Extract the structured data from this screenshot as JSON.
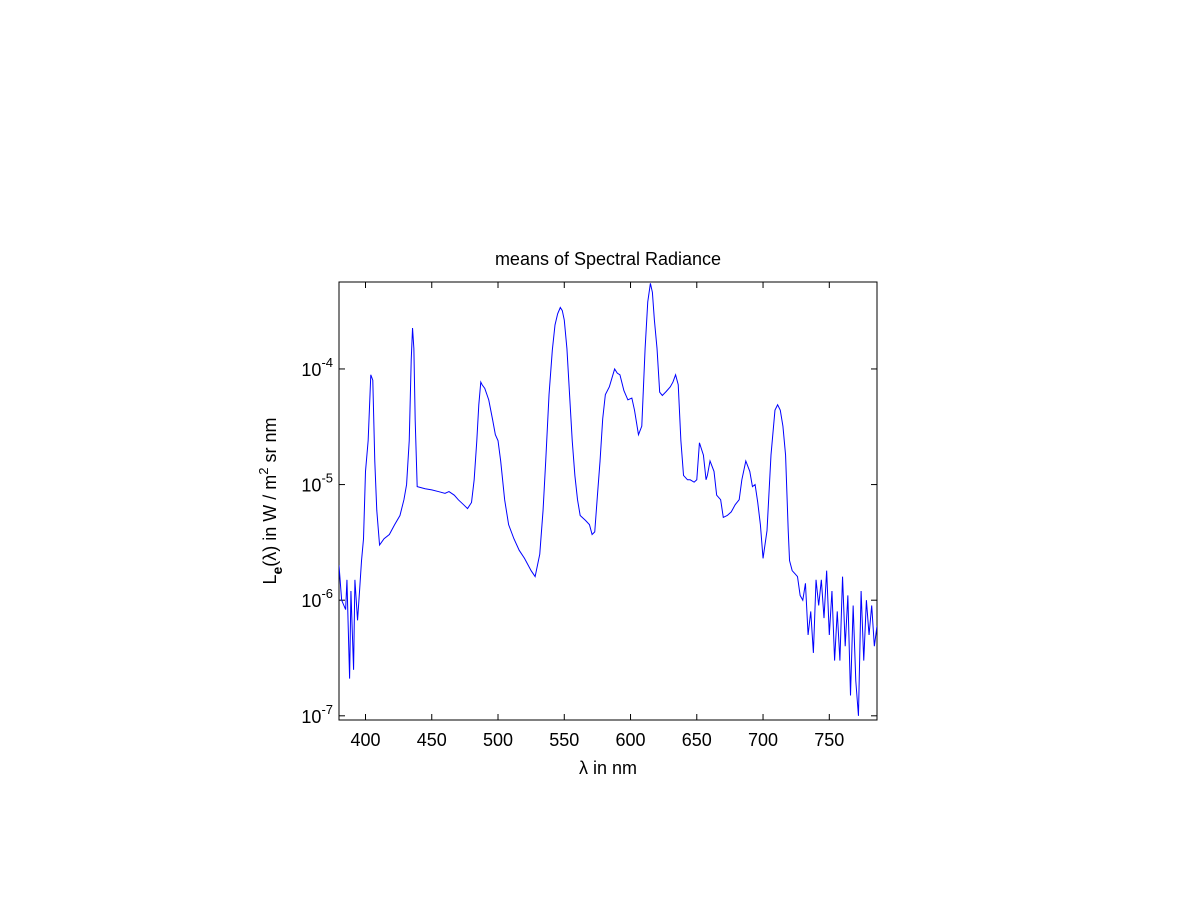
{
  "chart_data": {
    "type": "line",
    "title": "means of Spectral Radiance",
    "x_label": "λ in nm",
    "y_label": "Le(λ) in W / m2 sr nm",
    "yscale": "log",
    "color": "#0000ff",
    "x": [
      380,
      382,
      385,
      386,
      388,
      389,
      391,
      392,
      394,
      395.5,
      397,
      398.5,
      400,
      402,
      404,
      405.5,
      407,
      408.5,
      410.6,
      414,
      418,
      422,
      426,
      429,
      431,
      433,
      434.5,
      435.5,
      436.5,
      437.5,
      439,
      445,
      450,
      455,
      460,
      463,
      467,
      470,
      474,
      477,
      480,
      482,
      484,
      485.5,
      487,
      488,
      490,
      493,
      496,
      498,
      500,
      502,
      505,
      508,
      512,
      516,
      520,
      525,
      528,
      531.5,
      534,
      536,
      538.5,
      541,
      543,
      545,
      547,
      548.5,
      550,
      552,
      554,
      556,
      558,
      560,
      562,
      566,
      569,
      571,
      573,
      575,
      577,
      579,
      581,
      584,
      588,
      590,
      592,
      595,
      598,
      601,
      603,
      606,
      608.5,
      611,
      613,
      615,
      616.5,
      618,
      620,
      622,
      624,
      627,
      630,
      632,
      634,
      636,
      638,
      640,
      643,
      645,
      648,
      650,
      652,
      655,
      657,
      658,
      660,
      663,
      665,
      668,
      670,
      673,
      676,
      679,
      682,
      684,
      687,
      690,
      692,
      694,
      696,
      698,
      700,
      703,
      706,
      709,
      711,
      713,
      715,
      717,
      719,
      720,
      722,
      724,
      726,
      728,
      730,
      732,
      734,
      736,
      738,
      740,
      742,
      744,
      746,
      748,
      750,
      752,
      754,
      756,
      758,
      760,
      762,
      764,
      766,
      768,
      770,
      772,
      774,
      776,
      778,
      780,
      782,
      784,
      786
    ],
    "values": [
      2e-06,
      1e-06,
      8.3e-07,
      1.5e-06,
      2.1e-07,
      1.2e-06,
      2.5e-07,
      1.5e-06,
      6.7e-07,
      1.2e-06,
      2.2e-06,
      3.4e-06,
      1.3e-05,
      2.4e-05,
      8.9e-05,
      8e-05,
      1.6e-05,
      6e-06,
      3e-06,
      3.4e-06,
      3.7e-06,
      4.5e-06,
      5.4e-06,
      7.4e-06,
      1e-05,
      2.4e-05,
      0.00012,
      0.000226,
      0.00015,
      3.6e-05,
      9.6e-06,
      9.2e-06,
      9e-06,
      8.7e-06,
      8.4e-06,
      8.7e-06,
      8.1e-06,
      7.4e-06,
      6.7e-06,
      6.2e-06,
      7e-06,
      1.1e-05,
      2.4e-05,
      4.9e-05,
      7.7e-05,
      7.3e-05,
      6.8e-05,
      5.4e-05,
      3.6e-05,
      2.7e-05,
      2.4e-05,
      1.6e-05,
      7.4e-06,
      4.5e-06,
      3.4e-06,
      2.7e-06,
      2.3e-06,
      1.8e-06,
      1.6e-06,
      2.5e-06,
      6e-06,
      1.6e-05,
      6e-05,
      0.000146,
      0.00024,
      0.0003,
      0.00034,
      0.00032,
      0.000265,
      0.00015,
      6e-05,
      2.4e-05,
      1.2e-05,
      7.4e-06,
      5.4e-06,
      4.9e-06,
      4.5e-06,
      3.7e-06,
      3.9e-06,
      8e-06,
      1.6e-05,
      3.7e-05,
      6e-05,
      7e-05,
      0.0001,
      9.2e-05,
      8.9e-05,
      6.5e-05,
      5.4e-05,
      5.6e-05,
      4.4e-05,
      2.7e-05,
      3.2e-05,
      0.00015,
      0.00038,
      0.00055,
      0.00046,
      0.000265,
      0.00015,
      6.3e-05,
      5.9e-05,
      6.4e-05,
      7e-05,
      7.7e-05,
      8.9e-05,
      7.3e-05,
      2.4e-05,
      1.2e-05,
      1.1e-05,
      1.1e-05,
      1.05e-05,
      1.1e-05,
      2.3e-05,
      1.8e-05,
      1.1e-05,
      1.2e-05,
      1.6e-05,
      1.3e-05,
      8.1e-06,
      7.4e-06,
      5.2e-06,
      5.4e-06,
      5.8e-06,
      6.7e-06,
      7.4e-06,
      1.1e-05,
      1.6e-05,
      1.3e-05,
      9.6e-06,
      1e-05,
      7e-06,
      4.5e-06,
      2.3e-06,
      4e-06,
      1.8e-05,
      4.4e-05,
      4.9e-05,
      4.4e-05,
      3.2e-05,
      1.8e-05,
      4e-06,
      2.2e-06,
      1.8e-06,
      1.7e-06,
      1.6e-06,
      1.1e-06,
      1e-06,
      1.4e-06,
      5e-07,
      8e-07,
      3.5e-07,
      1.5e-06,
      9e-07,
      1.5e-06,
      7e-07,
      1.8e-06,
      5e-07,
      1.2e-06,
      3e-07,
      8e-07,
      3e-07,
      1.6e-06,
      4e-07,
      1.1e-06,
      1.5e-07,
      9e-07,
      2e-07,
      1e-07,
      1.2e-06,
      3e-07,
      1e-06,
      5e-07,
      9e-07,
      4e-07,
      6e-07
    ],
    "xlim": [
      380,
      786
    ],
    "xticks": [
      400,
      450,
      500,
      550,
      600,
      650,
      700,
      750
    ],
    "ylim": [
      9.2e-08,
      0.000565
    ],
    "yticks": [
      {
        "value": 1e-07,
        "label": "10-7"
      },
      {
        "value": 1e-06,
        "label": "10-6"
      },
      {
        "value": 1e-05,
        "label": "10-5"
      },
      {
        "value": 0.0001,
        "label": "10-4"
      }
    ]
  }
}
